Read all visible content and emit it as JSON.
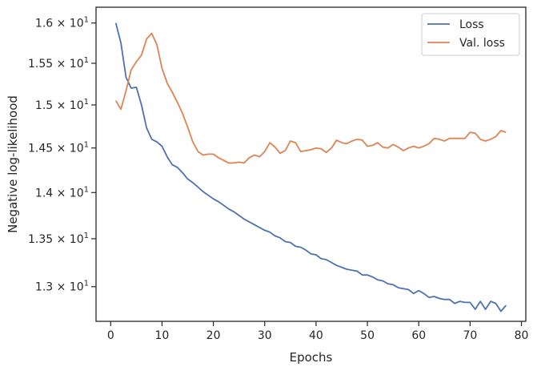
{
  "chart_data": {
    "type": "line",
    "xlabel": "Epochs",
    "ylabel": "Negative log-likelihood",
    "xlim": [
      -2.85,
      80.85
    ],
    "ylim": [
      12.65,
      16.2
    ],
    "y_scale": "log",
    "x_ticks": [
      0,
      10,
      20,
      30,
      40,
      50,
      60,
      70,
      80
    ],
    "x_tick_labels": [
      "0",
      "10",
      "20",
      "30",
      "40",
      "50",
      "60",
      "70",
      "80"
    ],
    "y_ticks": [
      {
        "value": 16.0,
        "mantissa": "1.6",
        "exp": "1"
      },
      {
        "value": 15.5,
        "mantissa": "1.55",
        "exp": "1"
      },
      {
        "value": 15.0,
        "mantissa": "1.5",
        "exp": "1"
      },
      {
        "value": 14.5,
        "mantissa": "1.45",
        "exp": "1"
      },
      {
        "value": 14.0,
        "mantissa": "1.4",
        "exp": "1"
      },
      {
        "value": 13.5,
        "mantissa": "1.35",
        "exp": "1"
      },
      {
        "value": 13.0,
        "mantissa": "1.3",
        "exp": "1"
      }
    ],
    "y_tick_times": "×",
    "y_tick_base": "10",
    "legend_position": "top-right",
    "grid": false,
    "series": [
      {
        "name": "Loss",
        "color": "#4c72b0",
        "x": [
          1,
          2,
          3,
          4,
          5,
          6,
          7,
          8,
          9,
          10,
          11,
          12,
          13,
          14,
          15,
          16,
          17,
          18,
          19,
          20,
          21,
          22,
          23,
          24,
          25,
          26,
          27,
          28,
          29,
          30,
          31,
          32,
          33,
          34,
          35,
          36,
          37,
          38,
          39,
          40,
          41,
          42,
          43,
          44,
          45,
          46,
          47,
          48,
          49,
          50,
          51,
          52,
          53,
          54,
          55,
          56,
          57,
          58,
          59,
          60,
          61,
          62,
          63,
          64,
          65,
          66,
          67,
          68,
          69,
          70,
          71,
          72,
          73,
          74,
          75,
          76,
          77
        ],
        "values": [
          16.0,
          15.75,
          15.33,
          15.2,
          15.21,
          15.0,
          14.73,
          14.6,
          14.57,
          14.52,
          14.4,
          14.31,
          14.28,
          14.22,
          14.15,
          14.11,
          14.06,
          14.01,
          13.97,
          13.93,
          13.9,
          13.86,
          13.82,
          13.79,
          13.75,
          13.71,
          13.68,
          13.65,
          13.62,
          13.59,
          13.57,
          13.53,
          13.51,
          13.47,
          13.46,
          13.42,
          13.41,
          13.38,
          13.34,
          13.33,
          13.29,
          13.28,
          13.25,
          13.22,
          13.2,
          13.18,
          13.17,
          13.16,
          13.12,
          13.12,
          13.1,
          13.07,
          13.06,
          13.03,
          13.02,
          12.99,
          12.98,
          12.97,
          12.93,
          12.96,
          12.93,
          12.89,
          12.9,
          12.88,
          12.87,
          12.87,
          12.83,
          12.85,
          12.84,
          12.84,
          12.77,
          12.85,
          12.77,
          12.85,
          12.83,
          12.75,
          12.81
        ]
      },
      {
        "name": "Val. loss",
        "color": "#dd8452",
        "x": [
          1,
          2,
          3,
          4,
          5,
          6,
          7,
          8,
          9,
          10,
          11,
          12,
          13,
          14,
          15,
          16,
          17,
          18,
          19,
          20,
          21,
          22,
          23,
          24,
          25,
          26,
          27,
          28,
          29,
          30,
          31,
          32,
          33,
          34,
          35,
          36,
          37,
          38,
          39,
          40,
          41,
          42,
          43,
          44,
          45,
          46,
          47,
          48,
          49,
          50,
          51,
          52,
          53,
          54,
          55,
          56,
          57,
          58,
          59,
          60,
          61,
          62,
          63,
          64,
          65,
          66,
          67,
          68,
          69,
          70,
          71,
          72,
          73,
          74,
          75,
          76,
          77
        ],
        "values": [
          15.05,
          14.95,
          15.17,
          15.42,
          15.52,
          15.6,
          15.8,
          15.87,
          15.73,
          15.44,
          15.26,
          15.15,
          15.03,
          14.9,
          14.74,
          14.57,
          14.46,
          14.42,
          14.43,
          14.43,
          14.39,
          14.36,
          14.33,
          14.33,
          14.34,
          14.33,
          14.39,
          14.42,
          14.4,
          14.46,
          14.56,
          14.51,
          14.44,
          14.47,
          14.58,
          14.56,
          14.46,
          14.47,
          14.48,
          14.5,
          14.49,
          14.45,
          14.5,
          14.59,
          14.56,
          14.55,
          14.58,
          14.6,
          14.59,
          14.52,
          14.53,
          14.56,
          14.51,
          14.5,
          14.54,
          14.51,
          14.47,
          14.5,
          14.52,
          14.5,
          14.52,
          14.55,
          14.61,
          14.6,
          14.58,
          14.61,
          14.61,
          14.61,
          14.61,
          14.68,
          14.67,
          14.6,
          14.58,
          14.6,
          14.63,
          14.7,
          14.68
        ]
      }
    ]
  }
}
